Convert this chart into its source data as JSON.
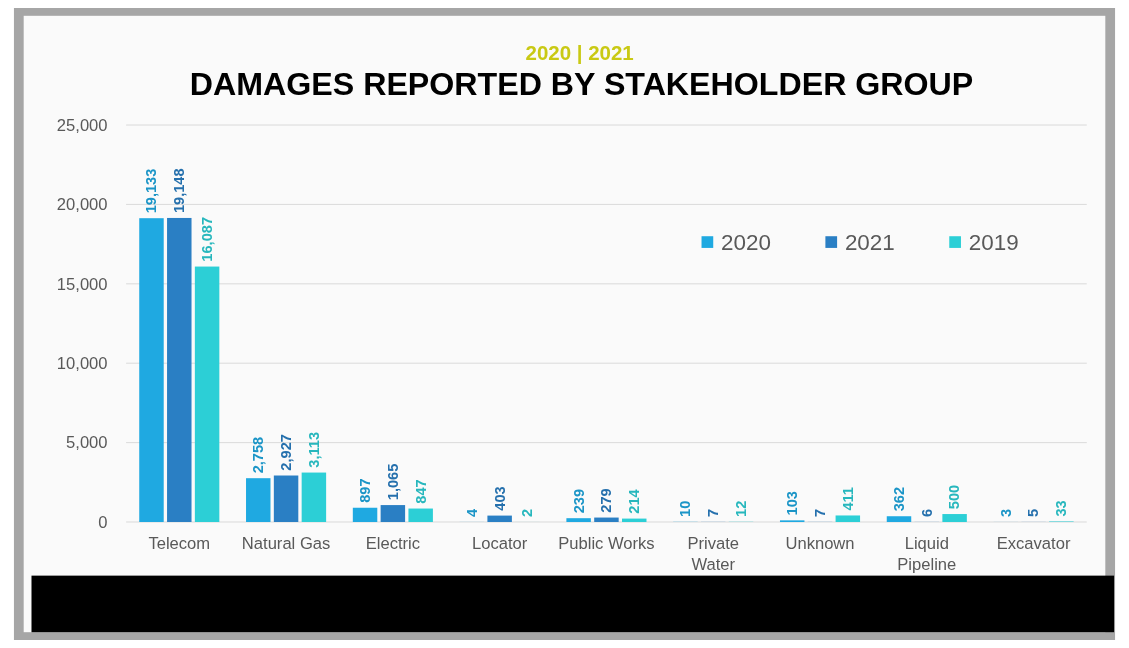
{
  "chart_data": {
    "type": "bar",
    "subtitle": "2020  |  2021",
    "title": "DAMAGES REPORTED BY STAKEHOLDER GROUP",
    "categories": [
      "Telecom",
      "Natural Gas",
      "Electric",
      "Locator",
      "Public Works",
      "Private Water",
      "Unknown",
      "Liquid Pipeline",
      "Excavator"
    ],
    "series": [
      {
        "name": "2020",
        "color": "#1fa9e1",
        "values": [
          19133,
          2758,
          897,
          4,
          239,
          10,
          103,
          362,
          3
        ],
        "value_labels": [
          "19,133",
          "2,758",
          "897",
          "4",
          "239",
          "10",
          "103",
          "362",
          "3"
        ]
      },
      {
        "name": "2021",
        "color": "#2a7fc4",
        "values": [
          19148,
          2927,
          1065,
          403,
          279,
          7,
          7,
          6,
          5
        ],
        "value_labels": [
          "19,148",
          "2,927",
          "1,065",
          "403",
          "279",
          "7",
          "7",
          "6",
          "5"
        ]
      },
      {
        "name": "2019",
        "color": "#2ccfd6",
        "values": [
          16087,
          3113,
          847,
          2,
          214,
          12,
          411,
          500,
          33
        ],
        "value_labels": [
          "16,087",
          "3,113",
          "847",
          "2",
          "214",
          "12",
          "411",
          "500",
          "33"
        ]
      }
    ],
    "ylim": [
      0,
      25000
    ],
    "yticks": [
      {
        "value": 0,
        "label": "0"
      },
      {
        "value": 5000,
        "label": "5,000"
      },
      {
        "value": 10000,
        "label": "10,000"
      },
      {
        "value": 15000,
        "label": "15,000"
      },
      {
        "value": 20000,
        "label": "20,000"
      },
      {
        "value": 25000,
        "label": "25,000"
      }
    ],
    "grid": "y",
    "legend": "top right"
  }
}
